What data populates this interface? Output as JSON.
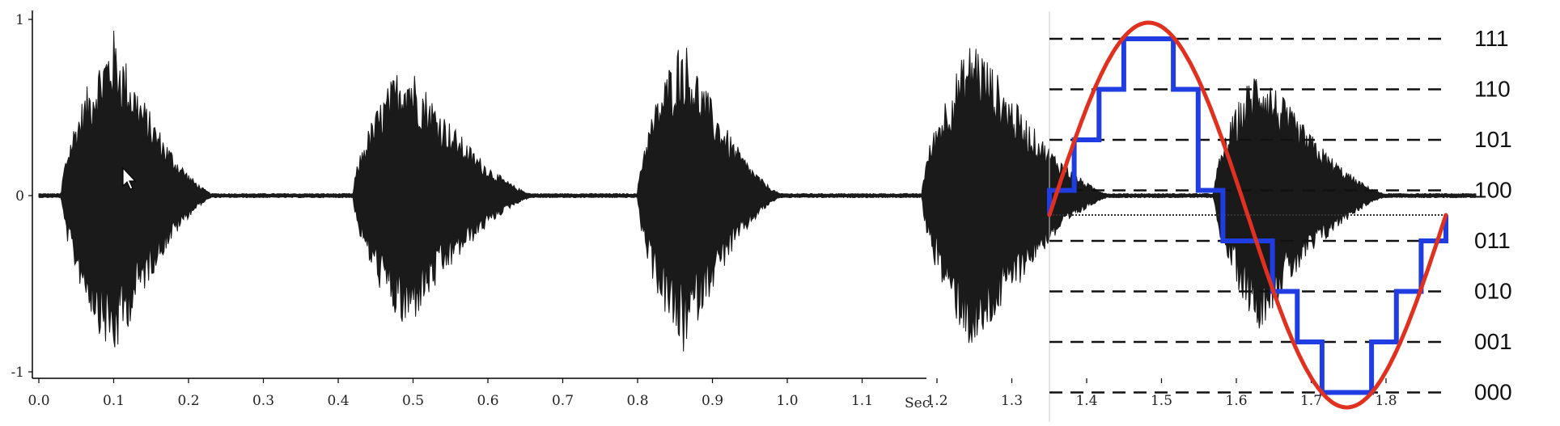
{
  "chart_data": [
    {
      "type": "area",
      "title": "",
      "xlabel": "",
      "ylabel": "",
      "x_unit": "Sec.",
      "xlim": [
        0.0,
        1.9
      ],
      "ylim": [
        -1,
        1
      ],
      "x_ticks": [
        "0.0",
        "0.1",
        "0.2",
        "0.3",
        "0.4",
        "0.5",
        "0.6",
        "0.7",
        "0.8",
        "0.9",
        "1.0",
        "1.1",
        "1.2",
        "1.3",
        "1.4",
        "1.5",
        "1.6",
        "1.7",
        "1.8"
      ],
      "y_ticks": [
        "1",
        "0",
        "-1"
      ],
      "series": [
        {
          "bursts": [
            {
              "start": 0.03,
              "peak": 0.1,
              "end": 0.24,
              "amplitude": 0.95
            },
            {
              "start": 0.42,
              "peak": 0.49,
              "end": 0.67,
              "amplitude": 0.8
            },
            {
              "start": 0.8,
              "peak": 0.86,
              "end": 1.0,
              "amplitude": 0.92
            },
            {
              "start": 1.18,
              "peak": 1.25,
              "end": 1.44,
              "amplitude": 0.92
            },
            {
              "start": 1.57,
              "peak": 1.63,
              "end": 1.81,
              "amplitude": 0.77
            }
          ]
        }
      ],
      "color": "#1a1a1a"
    },
    {
      "type": "line",
      "title": "",
      "xlabel": "",
      "ylabel": "",
      "y_level_labels": [
        "111",
        "110",
        "101",
        "100",
        "011",
        "010",
        "001",
        "000"
      ],
      "x": [
        0.0,
        0.0625,
        0.125,
        0.1875,
        0.25,
        0.3125,
        0.375,
        0.4375,
        0.5,
        0.5625,
        0.625,
        0.6875,
        0.75,
        0.8125,
        0.875,
        0.9375,
        1.0
      ],
      "series": [
        {
          "color": "#e03020",
          "values": [
            0.0,
            0.383,
            0.707,
            0.924,
            1.0,
            0.924,
            0.707,
            0.383,
            0.0,
            -0.383,
            -0.707,
            -0.924,
            -1.0,
            -0.924,
            -0.707,
            -0.383,
            0.0
          ]
        },
        {
          "color": "#1f3de0",
          "codes": [
            "100",
            "101",
            "110",
            "111",
            "111",
            "110",
            "100",
            "011",
            "011",
            "010",
            "001",
            "000",
            "000",
            "001",
            "010",
            "011"
          ]
        }
      ],
      "grid": true
    }
  ]
}
